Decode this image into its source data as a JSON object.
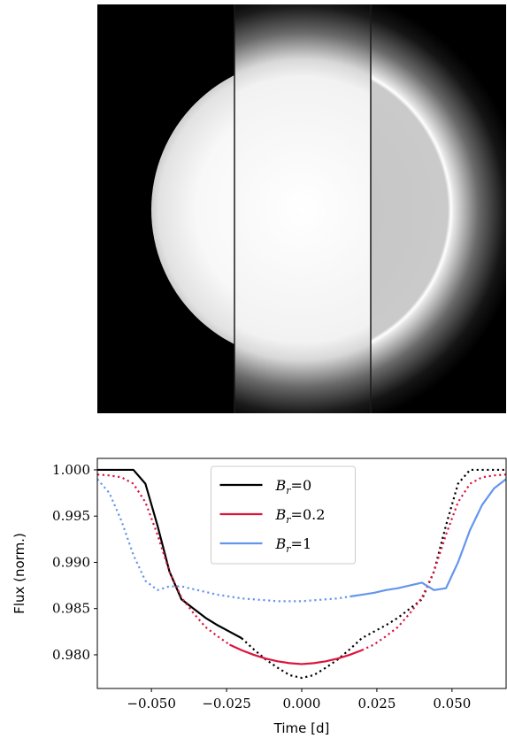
{
  "chart_data": {
    "type": "line",
    "xlabel": "Time [d]",
    "ylabel": "Flux (norm.)",
    "xlim": [
      -0.068,
      0.068
    ],
    "ylim": [
      0.97636,
      1.00124
    ],
    "xticks": [
      {
        "value": -0.05,
        "label": "−0.050"
      },
      {
        "value": -0.025,
        "label": "−0.025"
      },
      {
        "value": 0,
        "label": "0.000"
      },
      {
        "value": 0.025,
        "label": "0.025"
      },
      {
        "value": 0.05,
        "label": "0.050"
      }
    ],
    "yticks": [
      {
        "value": 0.98,
        "label": "0.980"
      },
      {
        "value": 0.985,
        "label": "0.985"
      },
      {
        "value": 0.99,
        "label": "0.990"
      },
      {
        "value": 0.995,
        "label": "0.995"
      },
      {
        "value": 1.0,
        "label": "1.000"
      }
    ],
    "legend": "upper center",
    "x": [
      -0.068,
      -0.064,
      -0.06,
      -0.056,
      -0.052,
      -0.048,
      -0.044,
      -0.04,
      -0.036,
      -0.032,
      -0.028,
      -0.024,
      -0.02,
      -0.016,
      -0.012,
      -0.008,
      -0.004,
      0,
      0.004,
      0.008,
      0.012,
      0.016,
      0.02,
      0.024,
      0.028,
      0.032,
      0.036,
      0.04,
      0.044,
      0.048,
      0.052,
      0.056,
      0.06,
      0.064,
      0.068
    ],
    "series": [
      {
        "name": "Br=0",
        "color": "#000000",
        "solid_x": [
          -0.068,
          -0.02
        ],
        "values": [
          1.0,
          1.0,
          1.0,
          1.0,
          0.9985,
          0.994,
          0.989,
          0.986,
          0.985,
          0.984,
          0.9832,
          0.9825,
          0.9818,
          0.9806,
          0.9795,
          0.9786,
          0.9778,
          0.9775,
          0.9778,
          0.9786,
          0.9795,
          0.9806,
          0.9818,
          0.9825,
          0.9832,
          0.984,
          0.985,
          0.986,
          0.989,
          0.994,
          0.9985,
          1.0,
          1.0,
          1.0,
          1.0
        ]
      },
      {
        "name": "Br=0.2",
        "color": "#dc143c",
        "solid_x": [
          -0.02,
          0.02
        ],
        "values": [
          0.9995,
          0.9994,
          0.9992,
          0.9985,
          0.9965,
          0.993,
          0.989,
          0.9862,
          0.9845,
          0.983,
          0.982,
          0.9811,
          0.9805,
          0.98,
          0.9796,
          0.9793,
          0.9791,
          0.979,
          0.9791,
          0.9793,
          0.9796,
          0.98,
          0.9805,
          0.9811,
          0.982,
          0.983,
          0.9845,
          0.9862,
          0.989,
          0.993,
          0.9965,
          0.9985,
          0.9992,
          0.9994,
          0.9995
        ]
      },
      {
        "name": "Br=1",
        "color": "#6495ed",
        "solid_x": [
          0.02,
          0.068
        ],
        "values": [
          0.999,
          0.9975,
          0.9945,
          0.9908,
          0.988,
          0.987,
          0.9874,
          0.9874,
          0.9871,
          0.9868,
          0.9865,
          0.9863,
          0.9861,
          0.986,
          0.9859,
          0.9858,
          0.9858,
          0.9858,
          0.9859,
          0.986,
          0.9861,
          0.9863,
          0.9865,
          0.9867,
          0.987,
          0.9872,
          0.9875,
          0.9878,
          0.987,
          0.9872,
          0.99,
          0.9935,
          0.9962,
          0.998,
          0.999
        ]
      }
    ]
  }
}
